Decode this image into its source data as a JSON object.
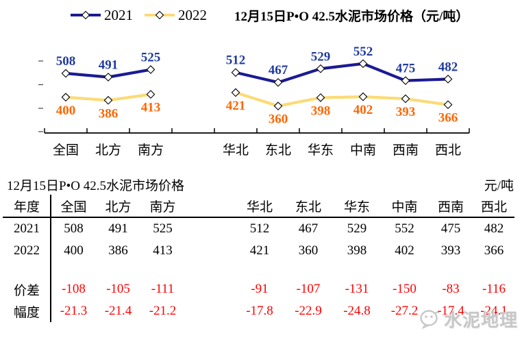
{
  "chart_data": {
    "type": "line",
    "title": "12月15日P•O 42.5水泥市场价格（元/吨）",
    "categories": [
      "全国",
      "北方",
      "南方",
      "",
      "华北",
      "东北",
      "华东",
      "中南",
      "西南",
      "西北"
    ],
    "series": [
      {
        "name": "2021",
        "color": "#1b1b94",
        "label_color": "#1f3a9e",
        "values": [
          508,
          491,
          525,
          null,
          512,
          467,
          529,
          552,
          475,
          482
        ]
      },
      {
        "name": "2022",
        "color": "#fbdb76",
        "label_color": "#ff6600",
        "values": [
          400,
          386,
          413,
          null,
          421,
          360,
          398,
          402,
          393,
          366
        ]
      }
    ],
    "marker": "diamond",
    "legend_position": "top-left",
    "grid": false,
    "y_axis_labels_visible": false,
    "ylim": [
      230,
      620
    ],
    "note": "line break between 南方 and 华北 groups"
  },
  "table": {
    "title": "12月15日P•O 42.5水泥市场价格",
    "unit": "元/吨",
    "label_column": "年度",
    "columns": [
      "全国",
      "北方",
      "南方",
      "华北",
      "东北",
      "华东",
      "中南",
      "西南",
      "西北"
    ],
    "rows": [
      {
        "label": "2021",
        "color": "black",
        "values": [
          508,
          491,
          525,
          512,
          467,
          529,
          552,
          475,
          482
        ]
      },
      {
        "label": "2022",
        "color": "black",
        "values": [
          400,
          386,
          413,
          421,
          360,
          398,
          402,
          393,
          366
        ]
      },
      {
        "label": "价差",
        "color": "red",
        "values": [
          -108,
          -105,
          -111,
          -91,
          -107,
          -131,
          -150,
          -83,
          -116
        ]
      },
      {
        "label": "幅度",
        "color": "red",
        "values": [
          -21.3,
          -21.4,
          -21.2,
          -17.8,
          -22.9,
          -24.8,
          -27.2,
          -17.4,
          -24.1
        ]
      }
    ]
  },
  "watermark": {
    "text": "水泥地理"
  },
  "colors": {
    "series_2021": "#1b1b94",
    "series_2022": "#fbdb76",
    "label_2021": "#1f3a9e",
    "label_2022": "#ff6600",
    "negative_red": "#ff0000",
    "watermark_gray": "#c7c7c7"
  }
}
